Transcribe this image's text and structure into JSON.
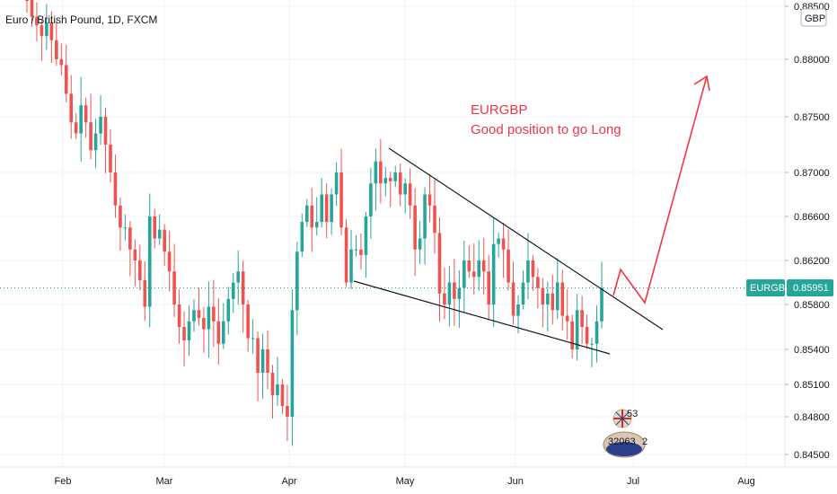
{
  "header": {
    "title": "Euro / British Pound, 1D, FXCM"
  },
  "currency_badge": "GBP",
  "price_tag": {
    "symbol": "EURGBP",
    "value": "0.85951"
  },
  "annotation": {
    "line1": "EURGBP",
    "line2": "Good position to go Long"
  },
  "stats": {
    "count": "53",
    "total": "32063",
    "extra": "2"
  },
  "colors": {
    "up": "#26a69a",
    "down": "#ef5350",
    "annotation": "#f23645",
    "line": "#131722",
    "tag": "#26a69a",
    "grid": "#f0f3fa"
  },
  "chart_data": {
    "type": "candlestick",
    "title": "Euro / British Pound, 1D, FXCM",
    "ylim": [
      0.8435,
      0.8855
    ],
    "y_ticks": [
      "0.88500",
      "0.88000",
      "0.87500",
      "0.87000",
      "0.86600",
      "0.86200",
      "0.85800",
      "0.85400",
      "0.85100",
      "0.84800",
      "0.84500"
    ],
    "x_ticks": [
      "Feb",
      "Mar",
      "Apr",
      "May",
      "Jun",
      "Jul",
      "Aug"
    ],
    "last_price": 0.85951,
    "close_series": [
      0.886,
      0.884,
      0.8832,
      0.8822,
      0.8835,
      0.8818,
      0.88,
      0.8795,
      0.877,
      0.8745,
      0.8735,
      0.876,
      0.8745,
      0.872,
      0.8735,
      0.875,
      0.8725,
      0.87,
      0.867,
      0.865,
      0.865,
      0.863,
      0.862,
      0.8602,
      0.8578,
      0.866,
      0.864,
      0.8648,
      0.8628,
      0.861,
      0.858,
      0.856,
      0.8548,
      0.8565,
      0.8575,
      0.8568,
      0.8558,
      0.8578,
      0.8565,
      0.8545,
      0.8565,
      0.8585,
      0.86,
      0.861,
      0.858,
      0.855,
      0.855,
      0.852,
      0.854,
      0.852,
      0.85,
      0.851,
      0.849,
      0.848,
      0.8575,
      0.8628,
      0.8655,
      0.867,
      0.865,
      0.8655,
      0.868,
      0.8655,
      0.868,
      0.87,
      0.865,
      0.86,
      0.863,
      0.863,
      0.8625,
      0.866,
      0.869,
      0.871,
      0.869,
      0.8695,
      0.8692,
      0.87,
      0.868,
      0.869,
      0.867,
      0.863,
      0.864,
      0.868,
      0.867,
      0.8645,
      0.859,
      0.858,
      0.86,
      0.8585,
      0.8595,
      0.862,
      0.861,
      0.8605,
      0.862,
      0.861,
      0.858,
      0.8635,
      0.864,
      0.863,
      0.86,
      0.857,
      0.858,
      0.86,
      0.862,
      0.8605,
      0.8595,
      0.858,
      0.859,
      0.8575,
      0.86,
      0.857,
      0.8565,
      0.854,
      0.8575,
      0.856,
      0.8545,
      0.8545,
      0.8565,
      0.8595
    ]
  }
}
